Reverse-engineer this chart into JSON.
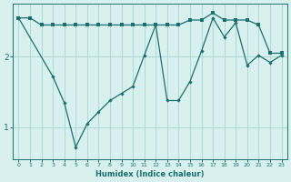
{
  "xlabel": "Humidex (Indice chaleur)",
  "bg_color": "#d8f0ee",
  "grid_color": "#b0d8d4",
  "line_color": "#1a7070",
  "xlim": [
    -0.5,
    23.5
  ],
  "ylim": [
    0.55,
    2.75
  ],
  "yticks": [
    1,
    2
  ],
  "line1_x": [
    0,
    1,
    2,
    3,
    4,
    5,
    6,
    7,
    8,
    9,
    10,
    11,
    12,
    13,
    14,
    15,
    16,
    17,
    18,
    19,
    20,
    21,
    22,
    23
  ],
  "line1_y": [
    2.55,
    2.55,
    2.45,
    2.45,
    2.45,
    2.45,
    2.45,
    2.45,
    2.45,
    2.45,
    2.45,
    2.45,
    2.45,
    2.45,
    2.45,
    2.52,
    2.52,
    2.62,
    2.52,
    2.52,
    2.52,
    2.45,
    2.05,
    2.05
  ],
  "line2_x": [
    0,
    3,
    4,
    5,
    6,
    7,
    8,
    9,
    10,
    11,
    12,
    13,
    14,
    15,
    16,
    17,
    18,
    19,
    20,
    21,
    22,
    23
  ],
  "line2_y": [
    2.55,
    1.72,
    1.35,
    0.72,
    1.05,
    1.22,
    1.38,
    1.48,
    1.58,
    2.02,
    2.45,
    1.38,
    1.38,
    1.65,
    2.08,
    2.55,
    2.28,
    2.48,
    1.88,
    2.02,
    1.92,
    2.02
  ]
}
